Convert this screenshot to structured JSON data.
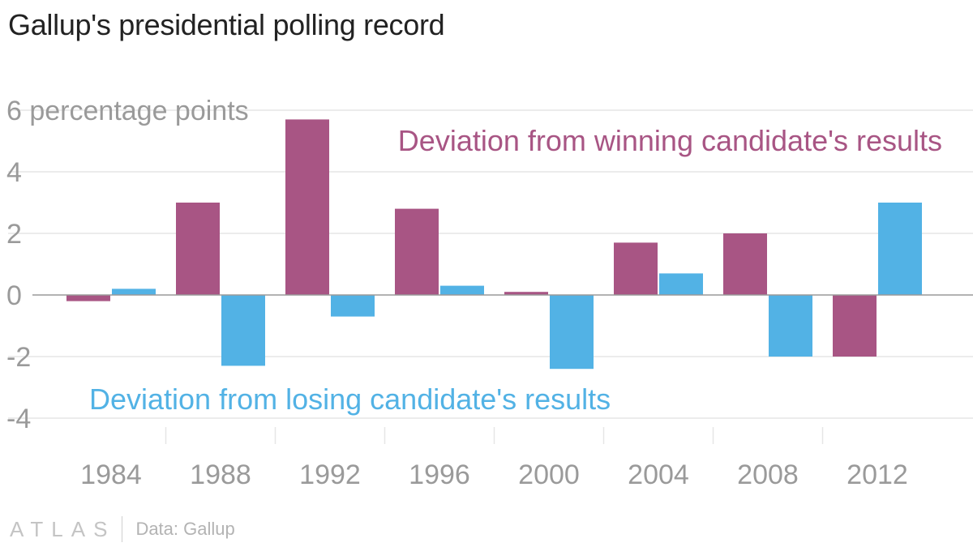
{
  "title": "Gallup's presidential polling record",
  "source": "Data: Gallup",
  "logo": "ATLAS",
  "colors": {
    "winning": "#a85584",
    "losing": "#52b2e5",
    "grid": "#e6e6e6",
    "axis": "#9a9a9a",
    "text": "#9a9a9a"
  },
  "chart_data": {
    "type": "bar",
    "categories": [
      "1984",
      "1988",
      "1992",
      "1996",
      "2000",
      "2004",
      "2008",
      "2012"
    ],
    "series": [
      {
        "name": "Deviation from winning candidate's results",
        "color": "#a85584",
        "values": [
          -0.2,
          3.0,
          5.7,
          2.8,
          0.1,
          1.7,
          2.0,
          -2.0
        ]
      },
      {
        "name": "Deviation from losing candidate's results",
        "color": "#52b2e5",
        "values": [
          0.2,
          -2.3,
          -0.7,
          0.3,
          -2.4,
          0.7,
          -2.0,
          3.0
        ]
      }
    ],
    "yticks": [
      {
        "value": 6,
        "label": "6 percentage points"
      },
      {
        "value": 4,
        "label": "4"
      },
      {
        "value": 2,
        "label": "2"
      },
      {
        "value": 0,
        "label": "0"
      },
      {
        "value": -2,
        "label": "-2"
      },
      {
        "value": -4,
        "label": "-4"
      }
    ],
    "ylim": [
      -4.6,
      6
    ],
    "grid": true,
    "legend": "inline annotations"
  }
}
